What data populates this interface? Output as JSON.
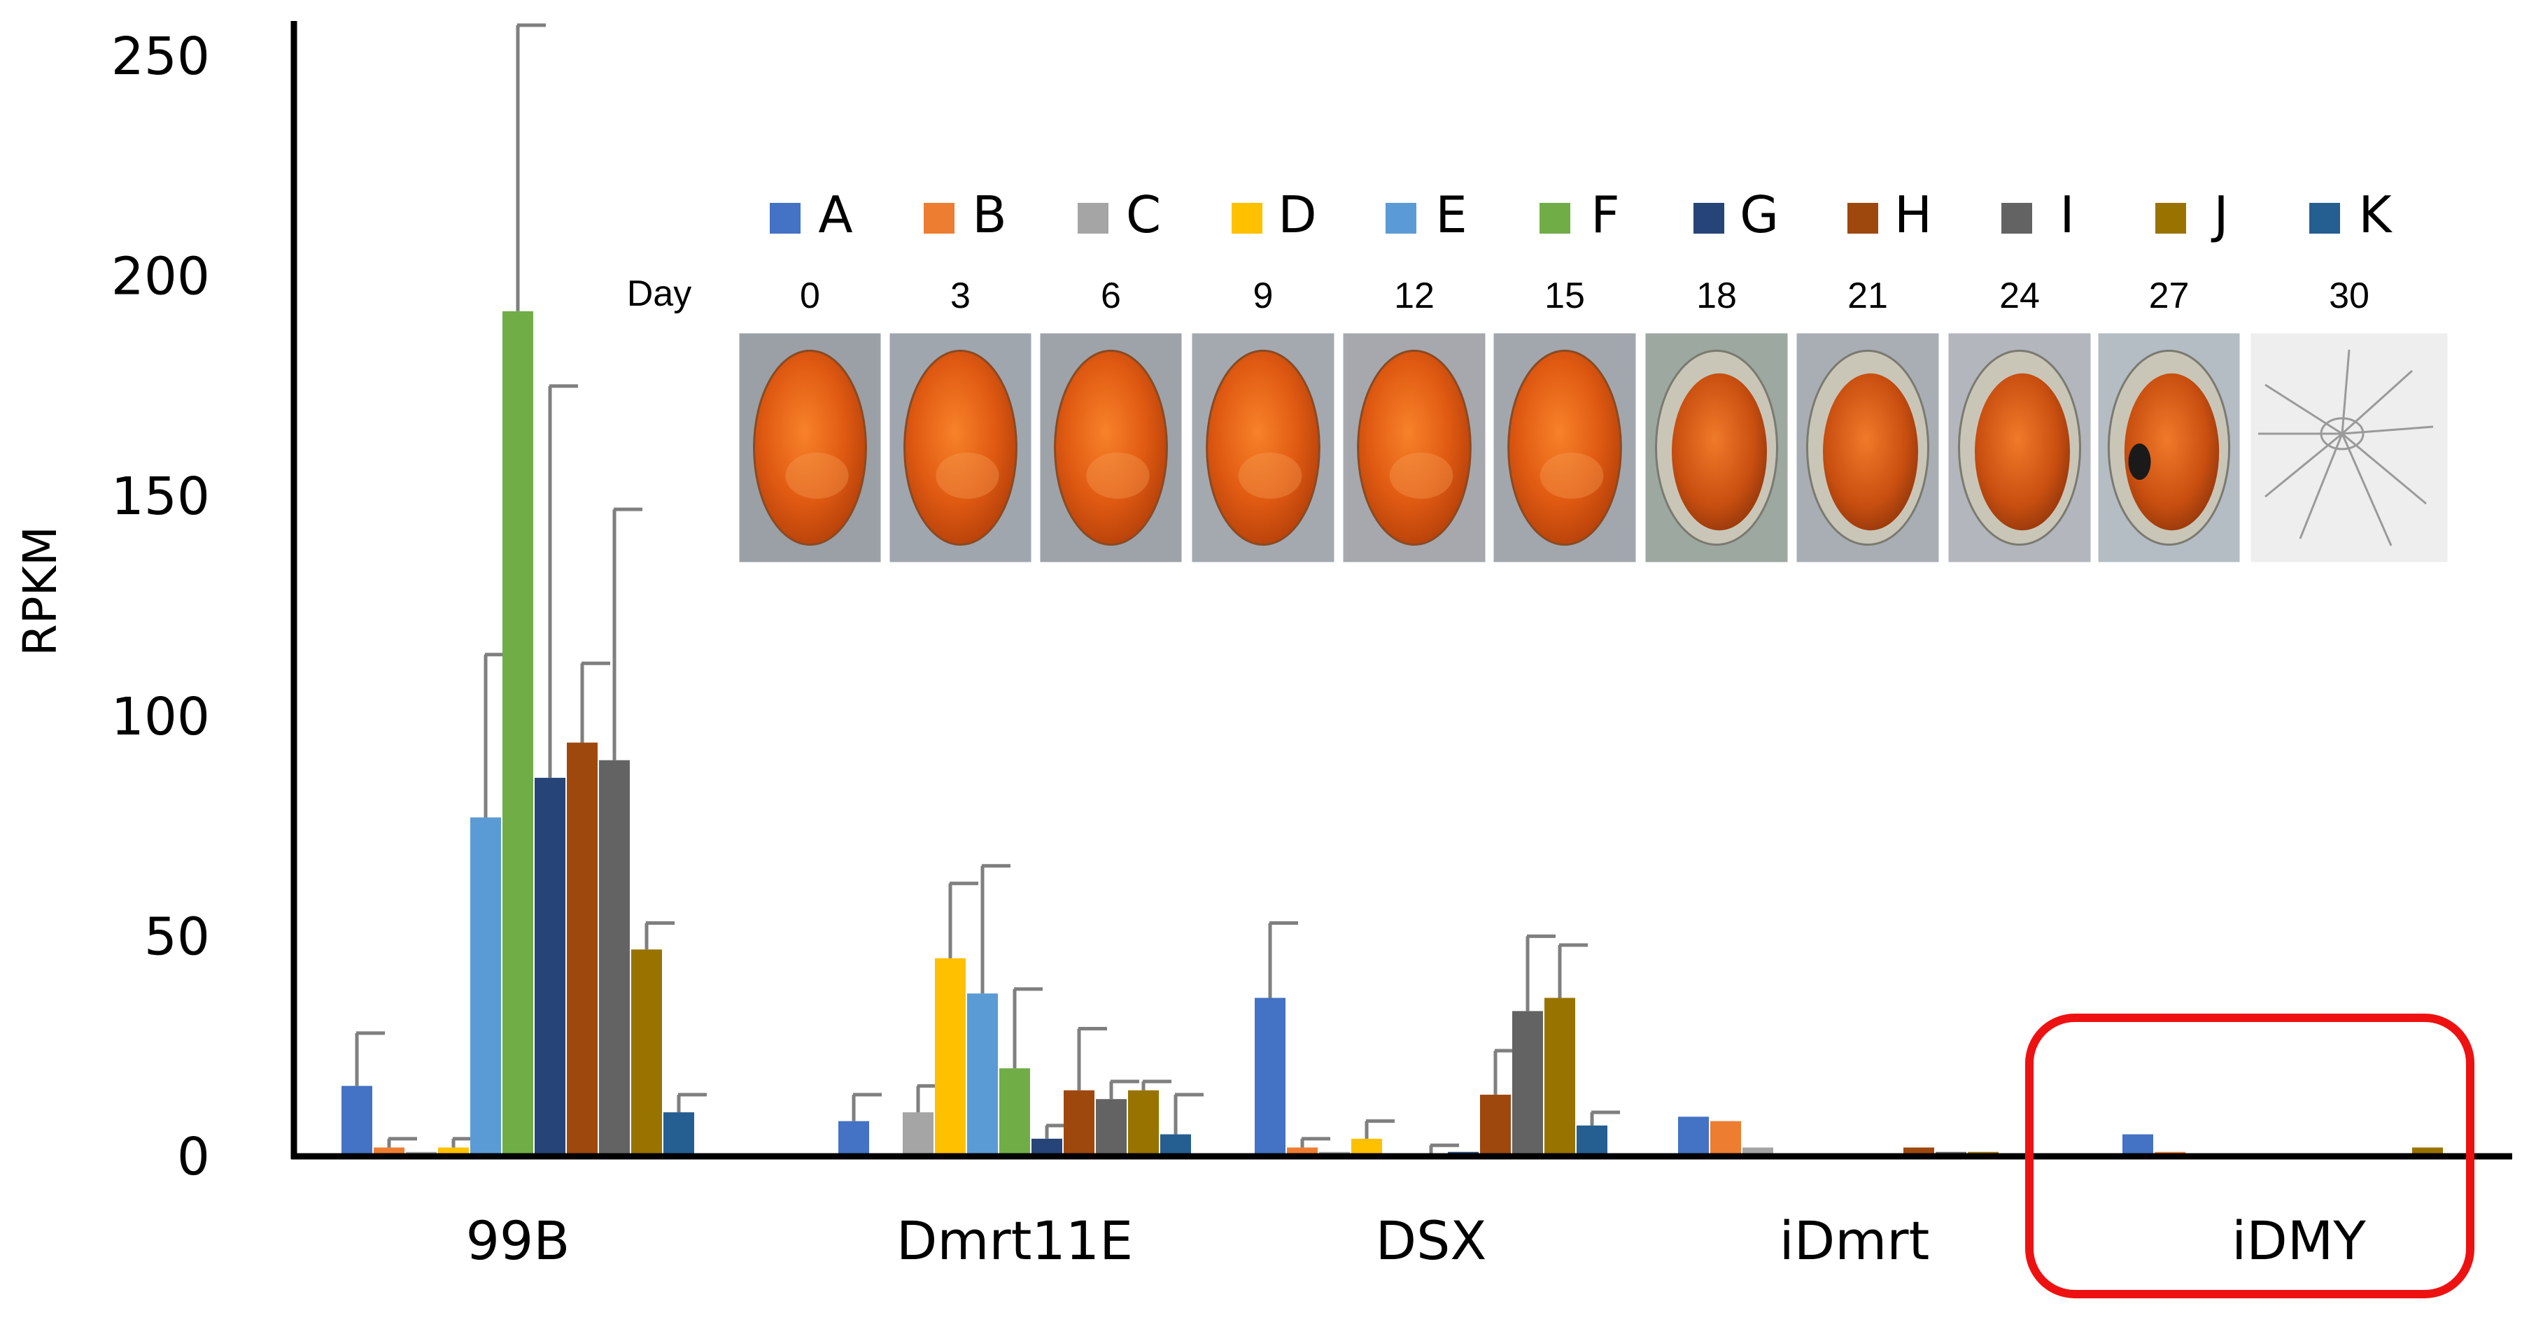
{
  "chart_data": {
    "type": "bar",
    "title": "",
    "xlabel": "",
    "ylabel": "RPKM",
    "ylim": [
      0,
      260
    ],
    "yticks": [
      "0",
      "50",
      "100",
      "150",
      "200",
      "250"
    ],
    "categories": [
      "99B",
      "Dmrt11E",
      "DSX",
      "iDmrt",
      "iDMY"
    ],
    "legend_position": "top-right",
    "series": [
      {
        "name": "A",
        "color": "#4472c4",
        "values": [
          16,
          8,
          36,
          9,
          5
        ],
        "errors": [
          12,
          6,
          17,
          0,
          0
        ]
      },
      {
        "name": "B",
        "color": "#ed7d31",
        "values": [
          2,
          0,
          2,
          8,
          1
        ],
        "errors": [
          2,
          0,
          2,
          0,
          0
        ]
      },
      {
        "name": "C",
        "color": "#a5a5a5",
        "values": [
          1,
          10,
          1,
          2,
          0
        ],
        "errors": [
          0,
          6,
          0,
          0,
          0
        ]
      },
      {
        "name": "D",
        "color": "#ffc000",
        "values": [
          2,
          45,
          4,
          0.3,
          0.3
        ],
        "errors": [
          2,
          17,
          4,
          0,
          0
        ]
      },
      {
        "name": "E",
        "color": "#5b9bd5",
        "values": [
          77,
          37,
          0.5,
          0.3,
          0.3
        ],
        "errors": [
          37,
          29,
          0,
          0,
          0
        ]
      },
      {
        "name": "F",
        "color": "#70ad47",
        "values": [
          192,
          20,
          0.5,
          0.3,
          0.3
        ],
        "errors": [
          65,
          18,
          2,
          0,
          0
        ]
      },
      {
        "name": "G",
        "color": "#264478",
        "values": [
          86,
          4,
          1,
          0.3,
          0.3
        ],
        "errors": [
          89,
          3,
          0,
          0,
          0
        ]
      },
      {
        "name": "H",
        "color": "#9e480e",
        "values": [
          94,
          15,
          14,
          2,
          0.3
        ],
        "errors": [
          18,
          14,
          10,
          0,
          0
        ]
      },
      {
        "name": "I",
        "color": "#636363",
        "values": [
          90,
          13,
          33,
          1,
          0.3
        ],
        "errors": [
          57,
          4,
          17,
          0,
          0
        ]
      },
      {
        "name": "J",
        "color": "#997300",
        "values": [
          47,
          15,
          36,
          1,
          2
        ],
        "errors": [
          6,
          2,
          12,
          0,
          0
        ]
      },
      {
        "name": "K",
        "color": "#255e91",
        "values": [
          10,
          5,
          7,
          0.3,
          0.3
        ],
        "errors": [
          4,
          9,
          3,
          0,
          0
        ]
      }
    ],
    "annotations": {
      "days_label": "Day",
      "days": [
        "0",
        "3",
        "6",
        "9",
        "12",
        "15",
        "18",
        "21",
        "24",
        "27",
        "30"
      ],
      "highlight_category": "iDMY"
    }
  }
}
